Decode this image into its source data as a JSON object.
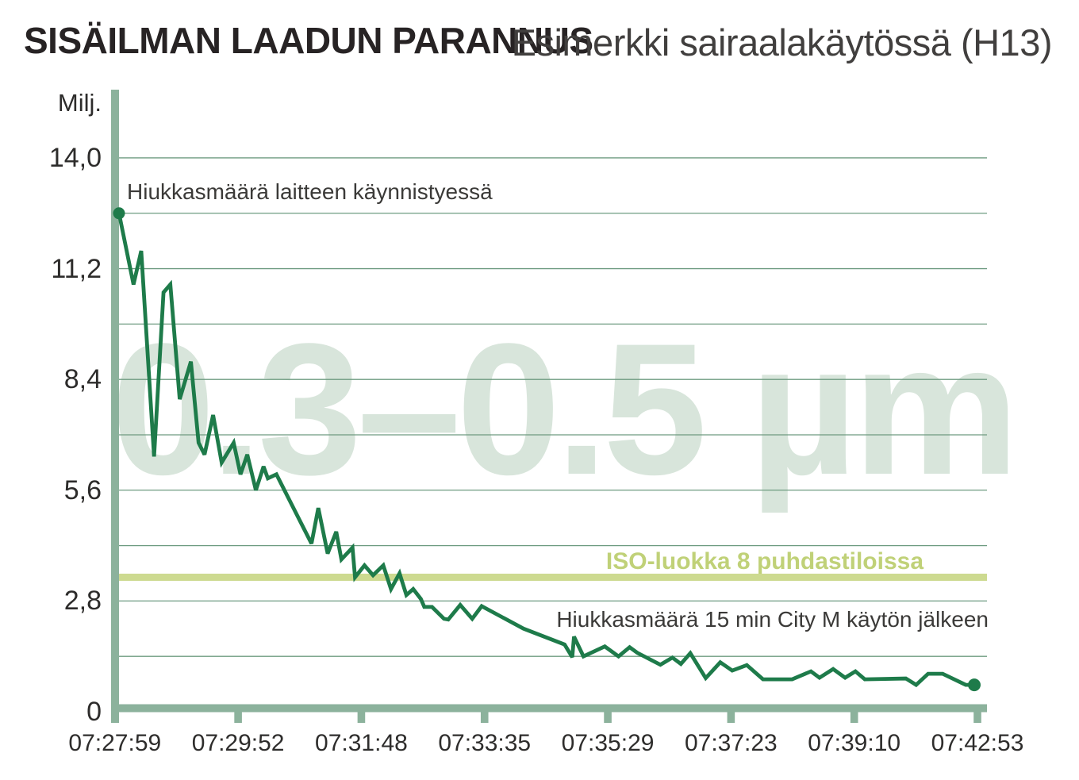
{
  "header": {
    "title": "SISÄILMAN LAADUN PARANNUS",
    "subtitle": "Esimerkki sairaalakäytössä (H13)"
  },
  "chart_data": {
    "type": "line",
    "unit_label": "Milj.",
    "watermark": "0.3–0.5 µm",
    "ylim": [
      0,
      14.0
    ],
    "gridline_step": 1.4,
    "grid_on": true,
    "y_ticks": [
      {
        "label": "14,0",
        "value": 14.0
      },
      {
        "label": "11,2",
        "value": 11.2
      },
      {
        "label": "8,4",
        "value": 8.4
      },
      {
        "label": "5,6",
        "value": 5.6
      },
      {
        "label": "2,8",
        "value": 2.8
      },
      {
        "label": "0",
        "value": 0
      }
    ],
    "x_ticks": [
      "07:27:59",
      "07:29:52",
      "07:31:48",
      "07:33:35",
      "07:35:29",
      "07:37:23",
      "07:39:10",
      "07:42:53"
    ],
    "iso_line": {
      "label": "ISO-luokka 8 puhdastiloissa",
      "value": 3.4
    },
    "annotations": [
      {
        "id": "start",
        "text": "Hiukkasmäärä laitteen käynnistyessä"
      },
      {
        "id": "end",
        "text": "Hiukkasmäärä 15 min City M käytön jälkeen"
      }
    ],
    "series": [
      {
        "name": "particle-count-millions",
        "start_value": 12.6,
        "end_value": 0.68,
        "points": [
          [
            0.0,
            12.6
          ],
          [
            0.017,
            10.8
          ],
          [
            0.026,
            11.65
          ],
          [
            0.041,
            6.45
          ],
          [
            0.052,
            10.6
          ],
          [
            0.06,
            10.8
          ],
          [
            0.071,
            7.9
          ],
          [
            0.084,
            8.85
          ],
          [
            0.093,
            6.8
          ],
          [
            0.1,
            6.5
          ],
          [
            0.11,
            7.5
          ],
          [
            0.12,
            6.3
          ],
          [
            0.134,
            6.8
          ],
          [
            0.142,
            6.0
          ],
          [
            0.15,
            6.5
          ],
          [
            0.16,
            5.6
          ],
          [
            0.169,
            6.2
          ],
          [
            0.174,
            5.9
          ],
          [
            0.184,
            6.0
          ],
          [
            0.225,
            4.25
          ],
          [
            0.233,
            5.15
          ],
          [
            0.244,
            4.0
          ],
          [
            0.254,
            4.55
          ],
          [
            0.26,
            3.85
          ],
          [
            0.273,
            4.15
          ],
          [
            0.276,
            3.4
          ],
          [
            0.287,
            3.7
          ],
          [
            0.297,
            3.45
          ],
          [
            0.309,
            3.7
          ],
          [
            0.318,
            3.1
          ],
          [
            0.328,
            3.5
          ],
          [
            0.336,
            2.95
          ],
          [
            0.344,
            3.1
          ],
          [
            0.353,
            2.85
          ],
          [
            0.357,
            2.65
          ],
          [
            0.366,
            2.65
          ],
          [
            0.38,
            2.35
          ],
          [
            0.385,
            2.33
          ],
          [
            0.399,
            2.7
          ],
          [
            0.413,
            2.35
          ],
          [
            0.424,
            2.67
          ],
          [
            0.473,
            2.1
          ],
          [
            0.521,
            1.7
          ],
          [
            0.53,
            1.38
          ],
          [
            0.532,
            1.9
          ],
          [
            0.543,
            1.4
          ],
          [
            0.568,
            1.65
          ],
          [
            0.584,
            1.4
          ],
          [
            0.597,
            1.63
          ],
          [
            0.606,
            1.49
          ],
          [
            0.633,
            1.19
          ],
          [
            0.647,
            1.37
          ],
          [
            0.657,
            1.21
          ],
          [
            0.668,
            1.48
          ],
          [
            0.686,
            0.85
          ],
          [
            0.703,
            1.25
          ],
          [
            0.717,
            1.04
          ],
          [
            0.734,
            1.18
          ],
          [
            0.753,
            0.82
          ],
          [
            0.787,
            0.82
          ],
          [
            0.809,
            1.02
          ],
          [
            0.819,
            0.86
          ],
          [
            0.835,
            1.08
          ],
          [
            0.849,
            0.86
          ],
          [
            0.861,
            1.02
          ],
          [
            0.872,
            0.82
          ],
          [
            0.92,
            0.84
          ],
          [
            0.932,
            0.68
          ],
          [
            0.946,
            0.96
          ],
          [
            0.963,
            0.96
          ],
          [
            0.99,
            0.68
          ],
          [
            1.0,
            0.68
          ]
        ]
      }
    ],
    "colors": {
      "line": "#1e7b4a",
      "axis": "#8cb29c",
      "grid": "#6e9b81",
      "iso_band": "#cdda90",
      "iso_label": "#c0d178",
      "watermark": "#d8e5db"
    }
  }
}
